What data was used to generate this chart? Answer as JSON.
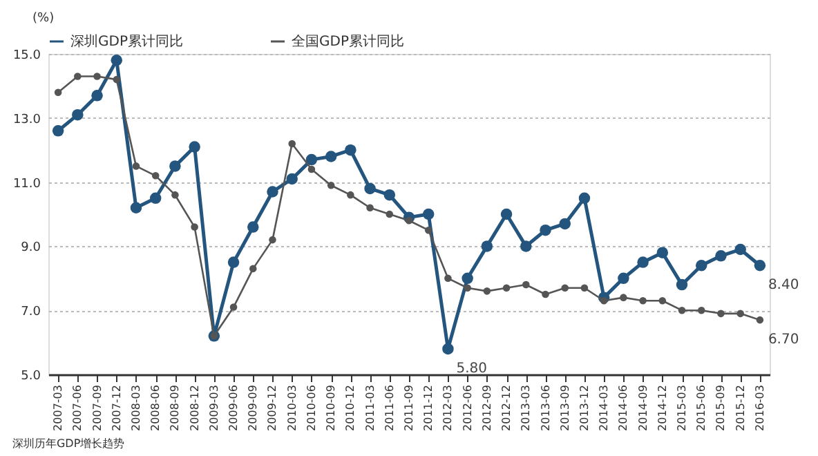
{
  "chart_data": {
    "type": "line",
    "ylabel": "(%)",
    "categories": [
      "2007-03",
      "2007-06",
      "2007-09",
      "2007-12",
      "2008-03",
      "2008-06",
      "2008-09",
      "2008-12",
      "2009-03",
      "2009-06",
      "2009-09",
      "2009-12",
      "2010-03",
      "2010-06",
      "2010-09",
      "2010-12",
      "2011-03",
      "2011-06",
      "2011-09",
      "2011-12",
      "2012-03",
      "2012-06",
      "2012-09",
      "2012-12",
      "2013-03",
      "2013-06",
      "2013-09",
      "2013-12",
      "2014-03",
      "2014-06",
      "2014-09",
      "2014-12",
      "2015-03",
      "2015-06",
      "2015-09",
      "2015-12",
      "2016-03"
    ],
    "series": [
      {
        "name": "深圳GDP累计同比",
        "color": "#24557e",
        "values": [
          12.6,
          13.1,
          13.7,
          14.8,
          10.2,
          10.5,
          11.5,
          12.1,
          6.2,
          8.5,
          9.6,
          10.7,
          11.1,
          11.7,
          11.8,
          12.0,
          10.8,
          10.6,
          9.9,
          10.0,
          5.8,
          8.0,
          9.0,
          10.0,
          9.0,
          9.5,
          9.7,
          10.5,
          7.4,
          8.0,
          8.5,
          8.8,
          7.8,
          8.4,
          8.7,
          8.9,
          8.4
        ]
      },
      {
        "name": "全国GDP累计同比",
        "color": "#555555",
        "values": [
          13.8,
          14.3,
          14.3,
          14.2,
          11.5,
          11.2,
          10.6,
          9.6,
          6.2,
          7.1,
          8.3,
          9.2,
          12.2,
          11.4,
          10.9,
          10.6,
          10.2,
          10.0,
          9.8,
          9.5,
          8.0,
          7.7,
          7.6,
          7.7,
          7.8,
          7.5,
          7.7,
          7.7,
          7.3,
          7.4,
          7.3,
          7.3,
          7.0,
          7.0,
          6.9,
          6.9,
          6.7
        ]
      }
    ],
    "ylim": [
      5,
      15
    ],
    "yticks": [
      {
        "value": 5,
        "label": "5.0"
      },
      {
        "value": 7,
        "label": "7.0"
      },
      {
        "value": 9,
        "label": "9.0"
      },
      {
        "value": 11,
        "label": "11.0"
      },
      {
        "value": 13,
        "label": "13.0"
      },
      {
        "value": 15,
        "label": "15.0"
      }
    ],
    "grid": "y",
    "legend": "top",
    "marker": "circle",
    "line_style": "solid",
    "annotations": [
      {
        "text": "5.80",
        "x": "2012-03",
        "y": 5.8
      },
      {
        "text": "8.40",
        "x": "2016-03",
        "y": 8.4
      },
      {
        "text": "6.70",
        "x": "2016-03",
        "y": 6.7
      },
      "深圳历年GDP增长趋势"
    ]
  }
}
